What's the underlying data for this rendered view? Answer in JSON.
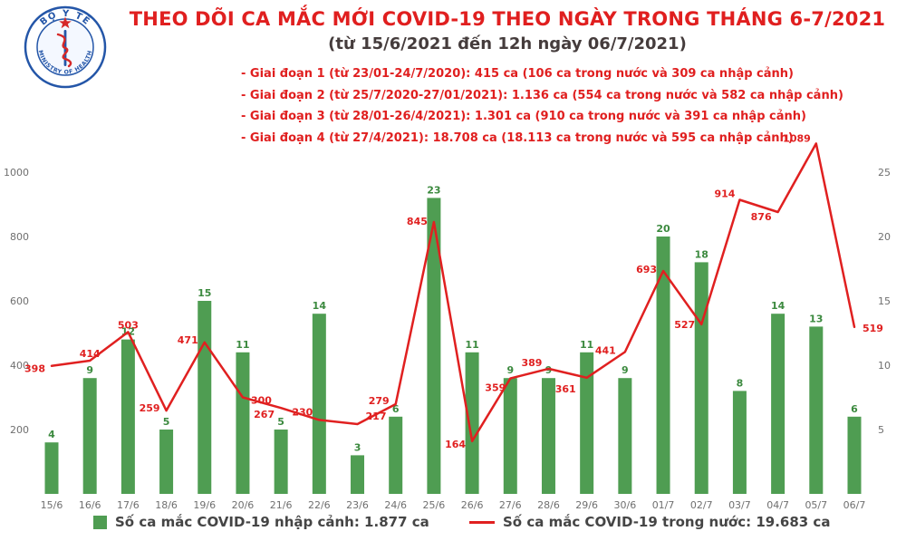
{
  "logo": {
    "top_text": "BỘ Y TẾ",
    "bottom_text": "MINISTRY OF HEALTH"
  },
  "header": {
    "title": "THEO DÕI CA MẮC MỚI COVID-19 THEO NGÀY TRONG THÁNG 6-7/2021",
    "subtitle": "(từ 15/6/2021 đến 12h ngày 06/7/2021)",
    "bullets": [
      "- Giai đoạn 1 (từ 23/01-24/7/2020): 415 ca (106 ca trong nước và 309 ca nhập cảnh)",
      "- Giai đoạn 2 (từ 25/7/2020-27/01/2021): 1.136 ca (554 ca trong nước và 582 ca nhập cảnh)",
      "- Giai đoạn 3 (từ 28/01-26/4/2021): 1.301 ca (910 ca trong nước và 391 ca nhập cảnh)",
      "- Giai đoạn 4 (từ 27/4/2021): 18.708 ca (18.113 ca trong nước và 595 ca nhập cảnh)"
    ]
  },
  "chart_data": {
    "type": "combo",
    "title": "THEO DÕI CA MẮC MỚI COVID-19 THEO NGÀY TRONG THÁNG 6-7/2021",
    "subtitle": "(từ 15/6/2021 đến 12h ngày 06/7/2021)",
    "categories": [
      "15/6",
      "16/6",
      "17/6",
      "18/6",
      "19/6",
      "20/6",
      "21/6",
      "22/6",
      "23/6",
      "24/6",
      "25/6",
      "26/6",
      "27/6",
      "28/6",
      "29/6",
      "30/6",
      "01/7",
      "02/7",
      "03/7",
      "04/7",
      "05/7",
      "06/7"
    ],
    "series": [
      {
        "name": "Số ca mắc COVID-19 nhập cảnh",
        "type": "bar",
        "axis": "right",
        "color": "#4f9d52",
        "values": [
          4,
          9,
          12,
          5,
          15,
          11,
          5,
          14,
          3,
          6,
          23,
          11,
          9,
          9,
          11,
          9,
          20,
          18,
          8,
          14,
          13,
          6
        ]
      },
      {
        "name": "Số ca mắc COVID-19 trong nước",
        "type": "line",
        "axis": "left",
        "color": "#e02020",
        "values": [
          398,
          414,
          503,
          259,
          471,
          300,
          267,
          230,
          217,
          279,
          845,
          164,
          359,
          389,
          361,
          441,
          693,
          527,
          914,
          876,
          1089,
          519
        ]
      }
    ],
    "left_axis": {
      "min": 0,
      "max": 1000,
      "ticks": [
        200,
        400,
        600,
        800,
        1000
      ]
    },
    "right_axis": {
      "min": 0,
      "max": 25,
      "ticks": [
        5,
        10,
        15,
        20,
        25
      ]
    },
    "grid": false,
    "legend_position": "bottom"
  },
  "legend": {
    "imported": "Số ca mắc COVID-19 nhập cảnh: 1.877 ca",
    "domestic": "Số ca mắc COVID-19 trong nước: 19.683 ca"
  },
  "colors": {
    "bar": "#4f9d52",
    "bar_label": "#3c8a3f",
    "line": "#e02020",
    "line_label": "#e02020",
    "title": "#e01f1f",
    "subtitle": "#453c3c",
    "bullet": "#e01f1f",
    "axis_text": "#6f6f6f",
    "legend_text": "#454545",
    "logo_blue": "#2456a8",
    "logo_star_red": "#d62828"
  }
}
